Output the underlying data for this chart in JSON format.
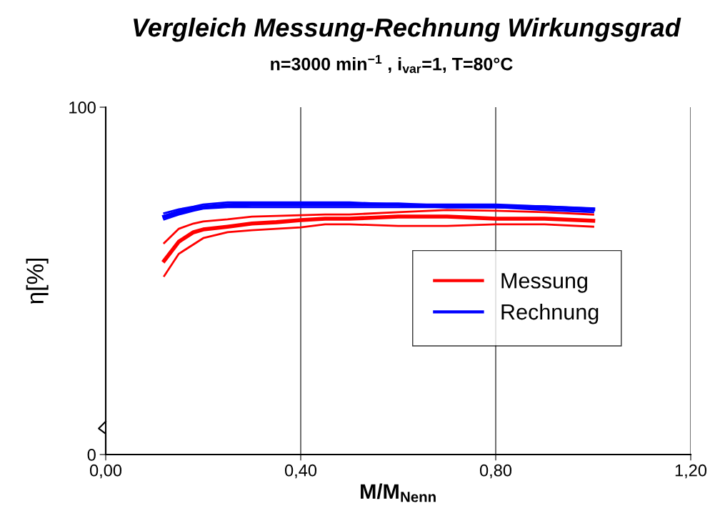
{
  "chart_data": {
    "type": "line",
    "title": "Vergleich Messung-Rechnung Wirkungsgrad",
    "subtitle": "n=3000 min$^{−1}$ , i$_{var}$=1, T=80°C",
    "xlabel": "M/M$_{Nenn}$",
    "ylabel": "η[%]",
    "x": [
      0.12,
      0.15,
      0.18,
      0.2,
      0.25,
      0.3,
      0.35,
      0.4,
      0.45,
      0.5,
      0.6,
      0.7,
      0.8,
      0.9,
      1.0
    ],
    "series": [
      {
        "color": "#ff0000",
        "values": [
          60.9,
          65,
          66.5,
          67.1,
          67.7,
          68.5,
          68.7,
          68.9,
          69.1,
          69.1,
          69.8,
          70.4,
          70.2,
          69.8,
          69.1
        ]
      },
      {
        "name": "Messung",
        "color": "#ff0000",
        "values": [
          55.8,
          61.3,
          64,
          64.8,
          65.6,
          66.5,
          66.9,
          67.5,
          67.9,
          67.9,
          68.5,
          68.5,
          67.9,
          67.9,
          67.3
        ]
      },
      {
        "color": "#ff0000",
        "values": [
          51.4,
          57.8,
          60.5,
          62.3,
          64,
          64.6,
          65,
          65.4,
          66.3,
          66.3,
          65.8,
          65.8,
          66.3,
          66.3,
          65.6
        ]
      },
      {
        "color": "#0000ff",
        "values": [
          69.5,
          70.6,
          71.4,
          72,
          72.6,
          72.6,
          72.6,
          72.6,
          72.6,
          72.6,
          72,
          72,
          72,
          71.4,
          70.8
        ]
      },
      {
        "name": "Rechnung",
        "color": "#0000ff",
        "values": [
          68.5,
          69.8,
          70.8,
          71.2,
          71.8,
          72,
          72,
          72,
          72,
          72,
          72,
          71.4,
          71.4,
          71.2,
          70.6
        ]
      },
      {
        "color": "#0000ff",
        "values": [
          67.7,
          69.1,
          70.2,
          70.8,
          71.2,
          71.2,
          71.2,
          71.2,
          71.2,
          71.2,
          71.2,
          71.2,
          71.2,
          70.4,
          69.8
        ]
      }
    ],
    "xlim": [
      0,
      1.2
    ],
    "xticks": [
      {
        "value": 0,
        "label": "0,00"
      },
      {
        "value": 0.4,
        "label": "0,40"
      },
      {
        "value": 0.8,
        "label": "0,80"
      },
      {
        "value": 1.2,
        "label": "1,20"
      }
    ],
    "ylim": [
      0,
      100
    ],
    "yticks": [
      0,
      100
    ],
    "grid": "x",
    "legend": "right",
    "marker": "none",
    "line_style": "solid"
  }
}
